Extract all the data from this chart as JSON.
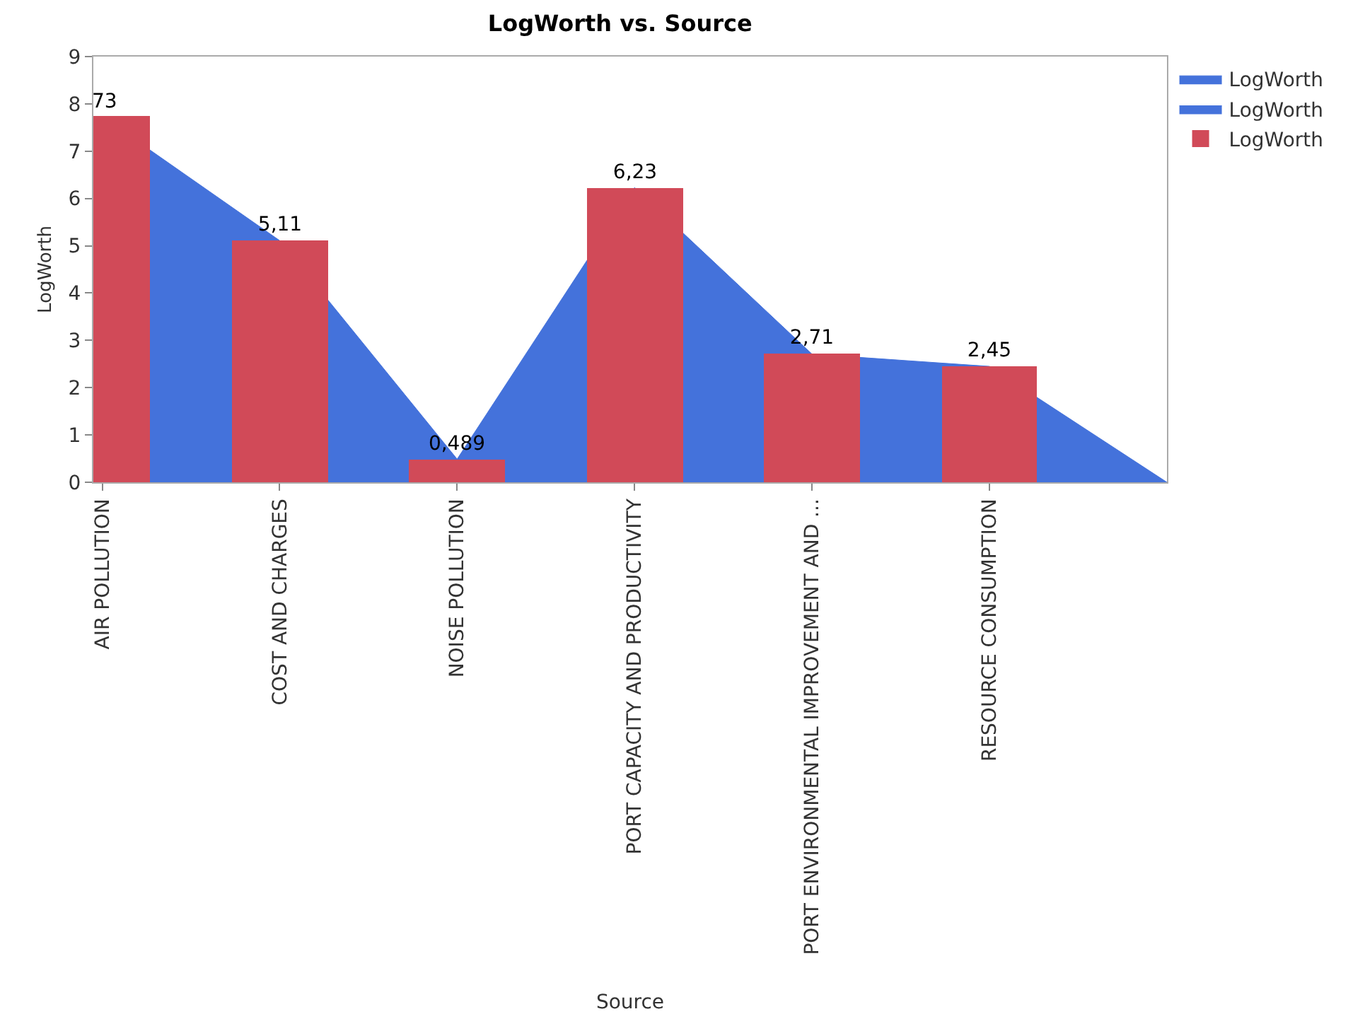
{
  "chart_data": {
    "type": "bar",
    "title": "LogWorth vs. Source",
    "xlabel": "Source",
    "ylabel": "LogWorth",
    "categories": [
      "AIR POLLUTION",
      "COST AND CHARGES",
      "NOISE POLLUTION",
      "PORT CAPACITY AND PRODUCTIVITY",
      "PORT ENVIRONMENTAL IMPROVEMENT AND ...",
      "RESOURCE CONSUMPTION",
      null
    ],
    "series": [
      {
        "name": "LogWorth",
        "type": "area",
        "color": "#4472db",
        "values": [
          7.73,
          5.11,
          0.489,
          6.23,
          2.71,
          2.45,
          0
        ]
      },
      {
        "name": "LogWorth",
        "type": "area",
        "color": "#4472db",
        "values": [
          null,
          null,
          null,
          null,
          null,
          null,
          null
        ]
      },
      {
        "name": "LogWorth",
        "color": "#d14a58",
        "values": [
          7.73,
          5.11,
          0.489,
          6.23,
          2.71,
          2.45,
          null
        ],
        "value_labels": [
          null,
          "5,11",
          "0,489",
          "6,23",
          "2,71",
          "2,45",
          null
        ]
      }
    ],
    "annotations": [
      {
        "text": "73",
        "x": "AIR POLLUTION",
        "y": 7.73
      }
    ],
    "ylim": [
      0,
      9
    ],
    "yticks": [
      0,
      1,
      2,
      3,
      4,
      5,
      6,
      7,
      8,
      9
    ],
    "grid": false,
    "legend": "top right"
  }
}
